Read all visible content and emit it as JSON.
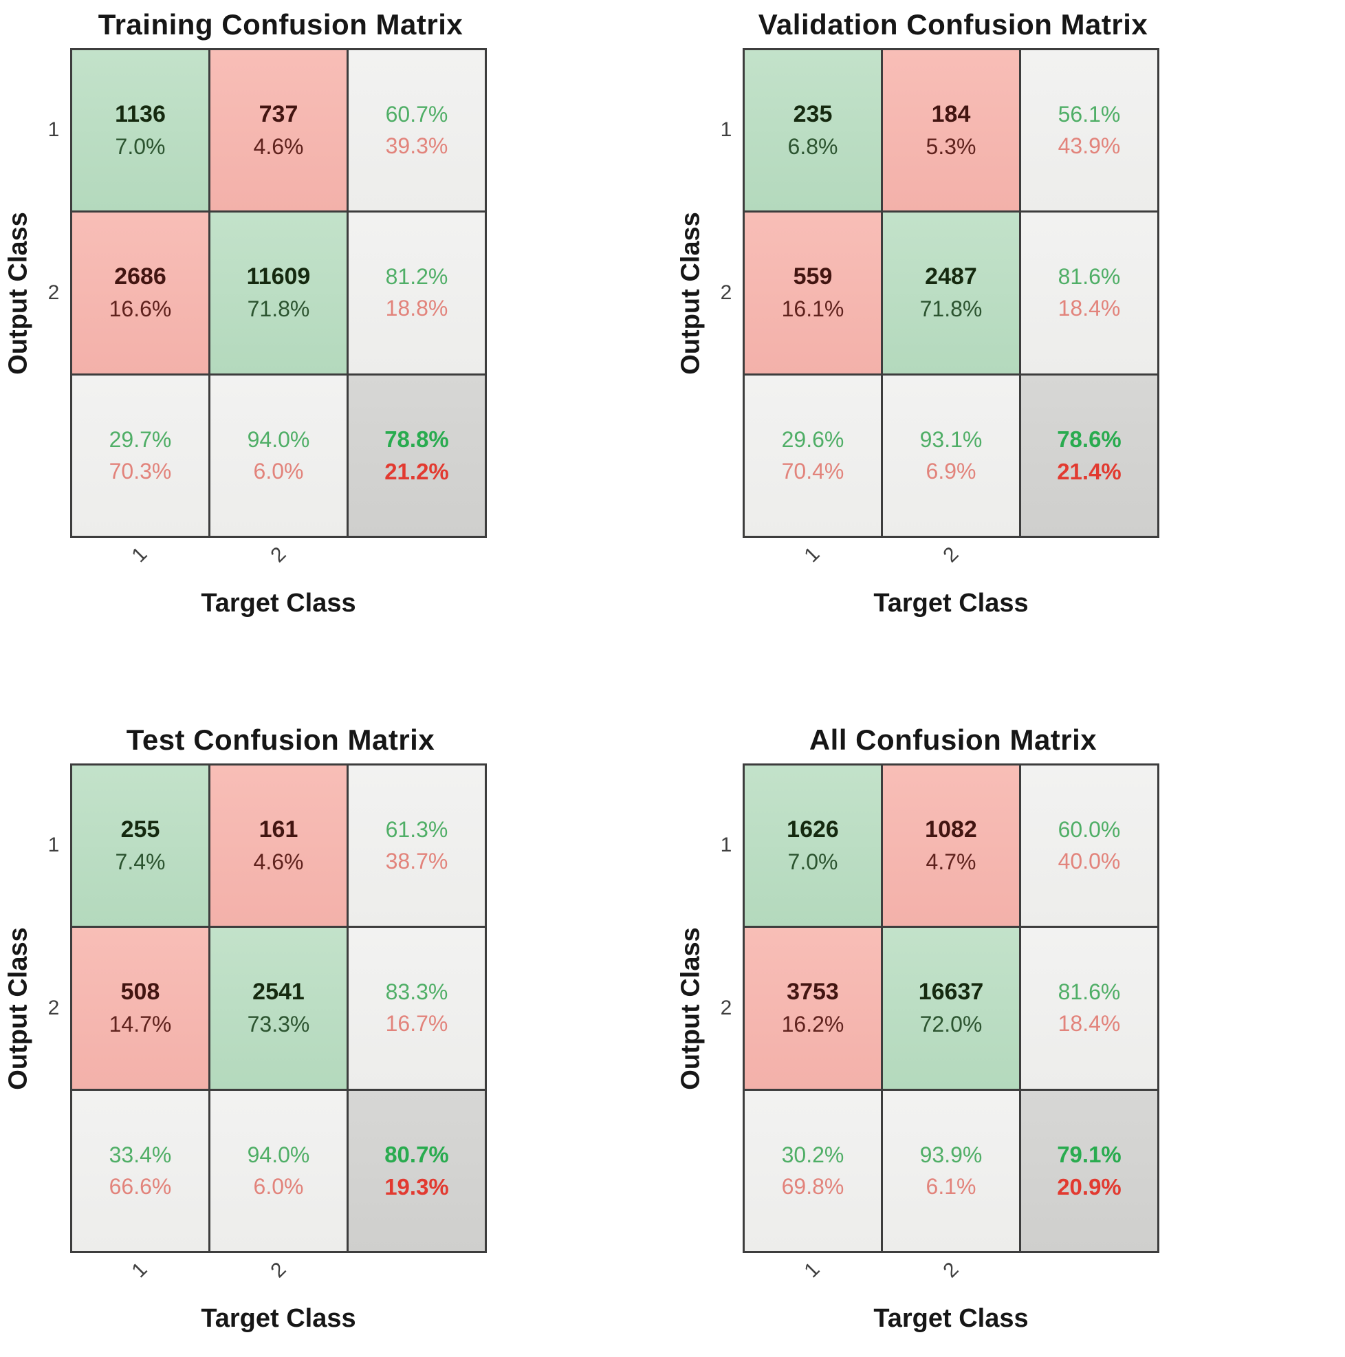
{
  "figure": {
    "kind": "confusion-matrix-figure",
    "background": "#ffffff"
  },
  "colors": {
    "correct_cell_bg": "#bcdec4",
    "incorrect_cell_bg": "#f6b8b1",
    "summary_cell_bg": "#f0f0ee",
    "overall_cell_bg": "#d3d3d1",
    "grid_border": "#3d3d3d",
    "summary_green_text": "#4fae66",
    "summary_red_text": "#e2837b",
    "overall_green_text": "#29ab4f",
    "overall_red_text": "#e23a30"
  },
  "chart_data": [
    {
      "type": "heatmap",
      "title": "Training Confusion Matrix",
      "xlabel": "Target Class",
      "ylabel": "Output Class",
      "x_tick_labels": [
        "1",
        "2"
      ],
      "y_tick_labels": [
        "1",
        "2"
      ],
      "counts": [
        [
          1136,
          737
        ],
        [
          2686,
          11609
        ]
      ],
      "cells": {
        "r1c1": {
          "count": "1136",
          "pct": "7.0%"
        },
        "r1c2": {
          "count": "737",
          "pct": "4.6%"
        },
        "r1sum": {
          "pos": "60.7%",
          "neg": "39.3%"
        },
        "r2c1": {
          "count": "2686",
          "pct": "16.6%"
        },
        "r2c2": {
          "count": "11609",
          "pct": "71.8%"
        },
        "r2sum": {
          "pos": "81.2%",
          "neg": "18.8%"
        },
        "c1sum": {
          "pos": "29.7%",
          "neg": "70.3%"
        },
        "c2sum": {
          "pos": "94.0%",
          "neg": "6.0%"
        },
        "total": {
          "pos": "78.8%",
          "neg": "21.2%"
        }
      }
    },
    {
      "type": "heatmap",
      "title": "Validation Confusion Matrix",
      "xlabel": "Target Class",
      "ylabel": "Output Class",
      "x_tick_labels": [
        "1",
        "2"
      ],
      "y_tick_labels": [
        "1",
        "2"
      ],
      "counts": [
        [
          235,
          184
        ],
        [
          559,
          2487
        ]
      ],
      "cells": {
        "r1c1": {
          "count": "235",
          "pct": "6.8%"
        },
        "r1c2": {
          "count": "184",
          "pct": "5.3%"
        },
        "r1sum": {
          "pos": "56.1%",
          "neg": "43.9%"
        },
        "r2c1": {
          "count": "559",
          "pct": "16.1%"
        },
        "r2c2": {
          "count": "2487",
          "pct": "71.8%"
        },
        "r2sum": {
          "pos": "81.6%",
          "neg": "18.4%"
        },
        "c1sum": {
          "pos": "29.6%",
          "neg": "70.4%"
        },
        "c2sum": {
          "pos": "93.1%",
          "neg": "6.9%"
        },
        "total": {
          "pos": "78.6%",
          "neg": "21.4%"
        }
      }
    },
    {
      "type": "heatmap",
      "title": "Test Confusion Matrix",
      "xlabel": "Target Class",
      "ylabel": "Output Class",
      "x_tick_labels": [
        "1",
        "2"
      ],
      "y_tick_labels": [
        "1",
        "2"
      ],
      "counts": [
        [
          255,
          161
        ],
        [
          508,
          2541
        ]
      ],
      "cells": {
        "r1c1": {
          "count": "255",
          "pct": "7.4%"
        },
        "r1c2": {
          "count": "161",
          "pct": "4.6%"
        },
        "r1sum": {
          "pos": "61.3%",
          "neg": "38.7%"
        },
        "r2c1": {
          "count": "508",
          "pct": "14.7%"
        },
        "r2c2": {
          "count": "2541",
          "pct": "73.3%"
        },
        "r2sum": {
          "pos": "83.3%",
          "neg": "16.7%"
        },
        "c1sum": {
          "pos": "33.4%",
          "neg": "66.6%"
        },
        "c2sum": {
          "pos": "94.0%",
          "neg": "6.0%"
        },
        "total": {
          "pos": "80.7%",
          "neg": "19.3%"
        }
      }
    },
    {
      "type": "heatmap",
      "title": "All Confusion Matrix",
      "xlabel": "Target Class",
      "ylabel": "Output Class",
      "x_tick_labels": [
        "1",
        "2"
      ],
      "y_tick_labels": [
        "1",
        "2"
      ],
      "counts": [
        [
          1626,
          1082
        ],
        [
          3753,
          16637
        ]
      ],
      "cells": {
        "r1c1": {
          "count": "1626",
          "pct": "7.0%"
        },
        "r1c2": {
          "count": "1082",
          "pct": "4.7%"
        },
        "r1sum": {
          "pos": "60.0%",
          "neg": "40.0%"
        },
        "r2c1": {
          "count": "3753",
          "pct": "16.2%"
        },
        "r2c2": {
          "count": "16637",
          "pct": "72.0%"
        },
        "r2sum": {
          "pos": "81.6%",
          "neg": "18.4%"
        },
        "c1sum": {
          "pos": "30.2%",
          "neg": "69.8%"
        },
        "c2sum": {
          "pos": "93.9%",
          "neg": "6.1%"
        },
        "total": {
          "pos": "79.1%",
          "neg": "20.9%"
        }
      }
    }
  ]
}
